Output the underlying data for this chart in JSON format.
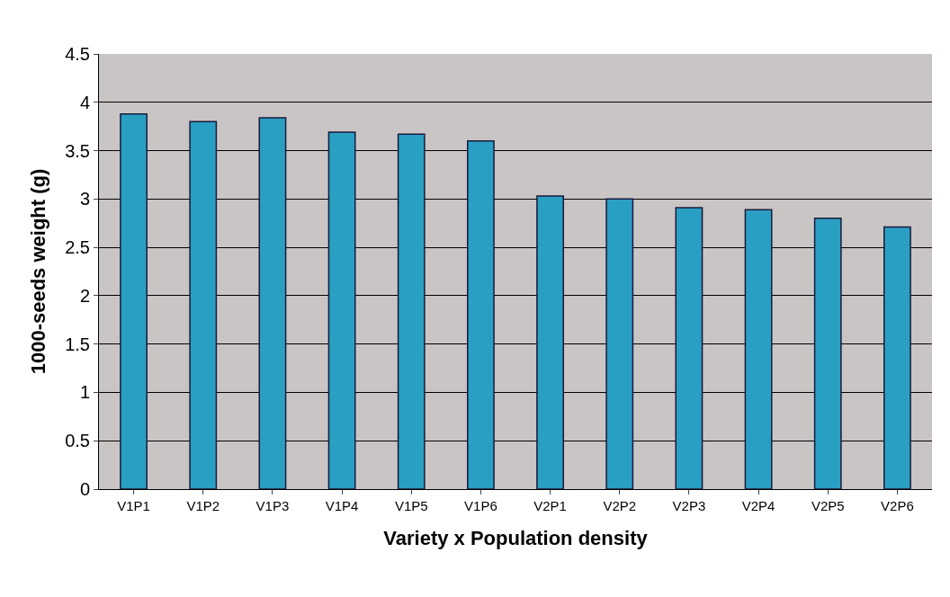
{
  "chart_data": {
    "type": "bar",
    "xlabel": "Variety x Population density",
    "ylabel": "1000-seeds weight (g)",
    "categories": [
      "V1P1",
      "V1P2",
      "V1P3",
      "V1P4",
      "V1P5",
      "V1P6",
      "V2P1",
      "V2P2",
      "V2P3",
      "V2P4",
      "V2P5",
      "V2P6"
    ],
    "values": [
      3.88,
      3.8,
      3.84,
      3.69,
      3.67,
      3.6,
      3.03,
      3.0,
      2.91,
      2.89,
      2.8,
      2.71
    ],
    "color": "#2a9fc4",
    "ylim": [
      0,
      4.5
    ],
    "yticks": [
      0,
      0.5,
      1,
      1.5,
      2,
      2.5,
      3,
      3.5,
      4,
      4.5
    ],
    "grid": "y"
  }
}
